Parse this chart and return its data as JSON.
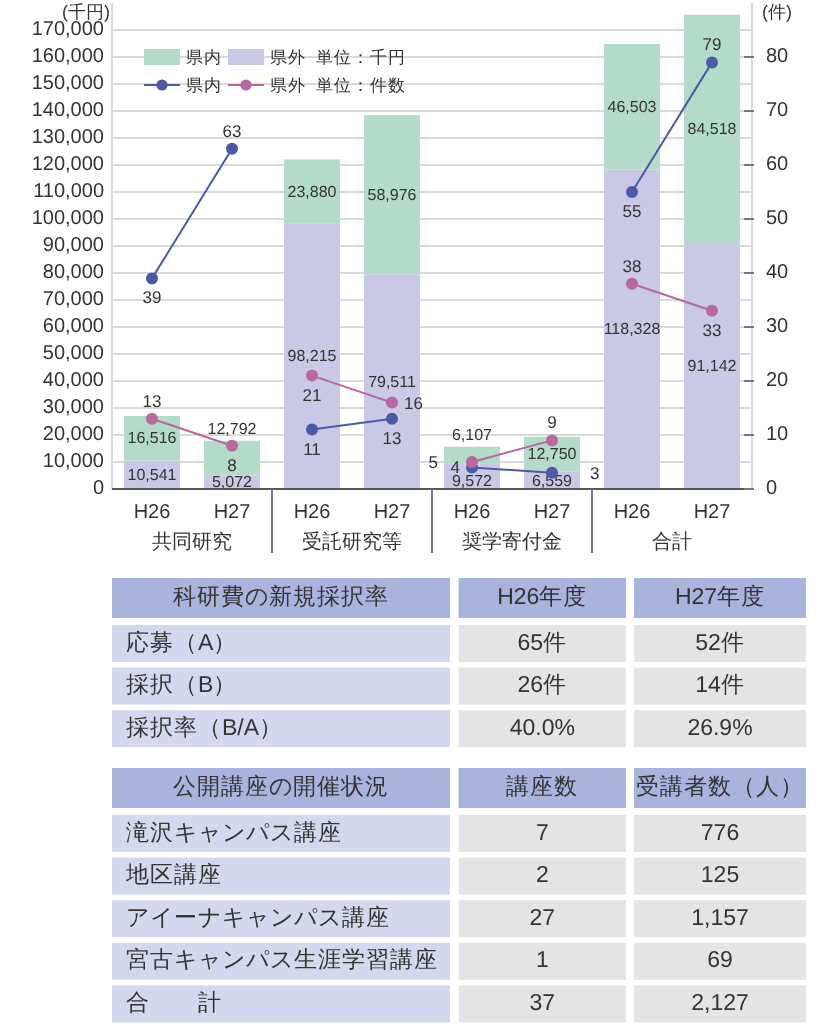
{
  "chart_data": [
    {
      "type": "bar",
      "stacked": true,
      "categories": [
        "H26",
        "H27",
        "H26",
        "H27",
        "H26",
        "H27",
        "H26",
        "H27"
      ],
      "ylabel": "(千円)",
      "y2label": "(件)",
      "ylim": [
        0,
        180000
      ],
      "yticks": [
        0,
        {
          "value": 10000,
          "label": "10,000"
        },
        {
          "value": 20000,
          "label": "20,000"
        },
        {
          "value": 30000,
          "label": "30,000"
        },
        {
          "value": 40000,
          "label": "40,000"
        },
        {
          "value": 50000,
          "label": "50,000"
        },
        {
          "value": 60000,
          "label": "60,000"
        },
        {
          "value": 70000,
          "label": "70,000"
        },
        {
          "value": 80000,
          "label": "80,000"
        },
        {
          "value": 90000,
          "label": "90,000"
        },
        {
          "value": 100000,
          "label": "100,000"
        },
        {
          "value": 110000,
          "label": "110,000"
        },
        {
          "value": 120000,
          "label": "120,000"
        },
        {
          "value": 130000,
          "label": "130,000"
        },
        {
          "value": 140000,
          "label": "140,000"
        },
        {
          "value": 150000,
          "label": "150,000"
        },
        {
          "value": 160000,
          "label": "160,000"
        },
        {
          "value": 170000,
          "label": "170,000"
        }
      ],
      "y2lim": [
        0,
        90
      ],
      "y2ticks": [
        0,
        10,
        20,
        30,
        40,
        50,
        60,
        70,
        80
      ],
      "grid": "y",
      "legend": "top left",
      "annotations": [
        "単位：千円",
        "単位：件数",
        "共同研究",
        "受託研究等",
        "奨学寄付金",
        "合計"
      ],
      "series": [
        {
          "name": "県外",
          "color": "#c9c9e5",
          "values": [
            10541,
            5072,
            98215,
            79511,
            9572,
            6559,
            118328,
            91142
          ],
          "value_labels": [
            "10,541",
            "5,072",
            "98,215",
            "79,511",
            "9,572",
            "6,559",
            "118,328",
            "91,142"
          ]
        },
        {
          "name": "県内",
          "color": "#b3dbc9",
          "values": [
            16516,
            12792,
            23880,
            58976,
            6107,
            12750,
            46503,
            84518
          ],
          "value_labels": [
            "16,516",
            "12,792",
            "23,880",
            "58,976",
            "6,107",
            "12,750",
            "46,503",
            "84,518"
          ]
        },
        {
          "name": "県内",
          "type": "line",
          "axis": "y2",
          "marker": "circle",
          "color": "#4c58a8",
          "values": [
            39,
            63,
            null,
            null,
            null,
            null,
            null,
            null
          ],
          "value_labels": [
            "39",
            "63",
            null,
            null,
            null,
            null,
            null,
            null
          ]
        },
        {
          "type": "line",
          "axis": "y2",
          "marker": "circle",
          "color": "#4c58a8",
          "values": [
            null,
            null,
            11,
            13,
            null,
            null,
            null,
            null
          ],
          "value_labels": [
            null,
            null,
            "11",
            "13",
            null,
            null,
            null,
            null
          ]
        },
        {
          "type": "line",
          "axis": "y2",
          "marker": "circle",
          "color": "#4c58a8",
          "values": [
            null,
            null,
            null,
            null,
            4,
            3,
            null,
            null
          ],
          "value_labels": [
            null,
            null,
            null,
            null,
            "4",
            "3",
            null,
            null
          ]
        },
        {
          "type": "line",
          "axis": "y2",
          "marker": "circle",
          "color": "#4c58a8",
          "values": [
            null,
            null,
            null,
            null,
            null,
            null,
            55,
            79
          ],
          "value_labels": [
            null,
            null,
            null,
            null,
            null,
            null,
            "55",
            "79"
          ]
        },
        {
          "name": "県外",
          "type": "line",
          "axis": "y2",
          "marker": "circle",
          "color": "#b8679f",
          "values": [
            13,
            8,
            null,
            null,
            null,
            null,
            null,
            null
          ],
          "value_labels": [
            "13",
            "8",
            null,
            null,
            null,
            null,
            null,
            null
          ]
        },
        {
          "type": "line",
          "axis": "y2",
          "marker": "circle",
          "color": "#b8679f",
          "values": [
            null,
            null,
            21,
            16,
            null,
            null,
            null,
            null
          ],
          "value_labels": [
            null,
            null,
            "21",
            "16",
            null,
            null,
            null,
            null
          ]
        },
        {
          "type": "line",
          "axis": "y2",
          "marker": "circle",
          "color": "#b8679f",
          "values": [
            null,
            null,
            null,
            null,
            5,
            9,
            null,
            null
          ],
          "value_labels": [
            null,
            null,
            null,
            null,
            "5",
            "9",
            null,
            null
          ]
        },
        {
          "type": "line",
          "axis": "y2",
          "marker": "circle",
          "color": "#b8679f",
          "values": [
            null,
            null,
            null,
            null,
            null,
            null,
            38,
            33
          ],
          "value_labels": [
            null,
            null,
            null,
            null,
            null,
            null,
            "38",
            "33"
          ]
        }
      ]
    },
    {
      "type": "other",
      "annotations": [
        "科研費の新規採択率",
        "H26年度",
        "H27年度",
        "応募（A）",
        "65件",
        "52件",
        "採択（B）",
        "26件",
        "14件",
        "採択率（B/A）",
        "40.0%",
        "26.9%"
      ]
    },
    {
      "type": "other",
      "annotations": [
        "公開講座の開催状況",
        "講座数",
        "受講者数（人）",
        "滝沢キャンパス講座",
        "7",
        "776",
        "地区講座",
        "2",
        "125",
        "アイーナキャンパス講座",
        "27",
        "1,157",
        "宮古キャンパス生涯学習講座",
        "1",
        "69",
        "合　　計",
        "37",
        "2,127"
      ]
    }
  ]
}
